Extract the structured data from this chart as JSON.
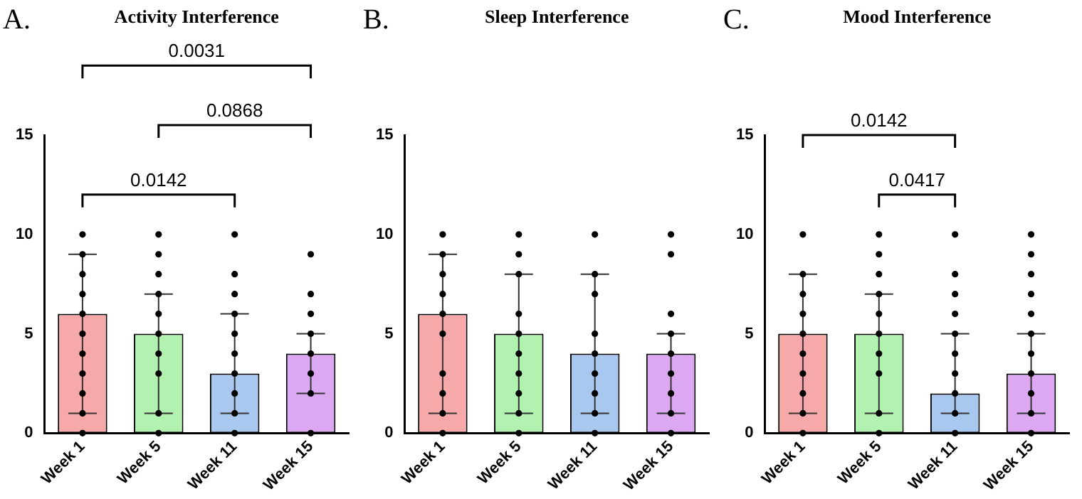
{
  "chart_data": [
    {
      "type": "bar",
      "title": "Activity Interference",
      "annotations": [
        "A.",
        "0.0142",
        "0.0868",
        "0.0031"
      ],
      "categories": [
        "Week 1",
        "Week 5",
        "Week 11",
        "Week 15"
      ],
      "ylim": [
        0,
        15
      ],
      "yticks": [
        0,
        5,
        10,
        15
      ],
      "series": [
        {
          "colors": [
            "#f7a8a8",
            "#b2f2b0",
            "#a8c8f0",
            "#dca8f2"
          ],
          "values": [
            6,
            5,
            3,
            4
          ],
          "errors": [
            [
              1,
              9
            ],
            [
              1,
              7
            ],
            [
              1,
              6
            ],
            [
              2,
              5
            ]
          ]
        },
        {
          "type": "scatter",
          "color": "#000000",
          "marker": "circle",
          "x": [
            "Week 1",
            "Week 1",
            "Week 1",
            "Week 1",
            "Week 1",
            "Week 1",
            "Week 1",
            "Week 1",
            "Week 1",
            "Week 1",
            "Week 1",
            "Week 5",
            "Week 5",
            "Week 5",
            "Week 5",
            "Week 5",
            "Week 5",
            "Week 5",
            "Week 5",
            "Week 5",
            "Week 5",
            "Week 11",
            "Week 11",
            "Week 11",
            "Week 11",
            "Week 11",
            "Week 11",
            "Week 11",
            "Week 11",
            "Week 11",
            "Week 11",
            "Week 15",
            "Week 15",
            "Week 15",
            "Week 15",
            "Week 15",
            "Week 15",
            "Week 15",
            "Week 15"
          ],
          "values": [
            10,
            9,
            8,
            7,
            6,
            5,
            4,
            3,
            2,
            1,
            0,
            10,
            9,
            8,
            7,
            6,
            5,
            4,
            3,
            1,
            0,
            10,
            8,
            7,
            6,
            5,
            4,
            3,
            2,
            1,
            0,
            9,
            7,
            6,
            5,
            4,
            3,
            2,
            0
          ]
        }
      ]
    },
    {
      "type": "bar",
      "title": "Sleep Interference",
      "annotations": [
        "B."
      ],
      "categories": [
        "Week 1",
        "Week 5",
        "Week 11",
        "Week 15"
      ],
      "ylim": [
        0,
        15
      ],
      "yticks": [
        0,
        5,
        10,
        15
      ],
      "series": [
        {
          "colors": [
            "#f7a8a8",
            "#b2f2b0",
            "#a8c8f0",
            "#dca8f2"
          ],
          "values": [
            6,
            5,
            4,
            4
          ],
          "errors": [
            [
              1,
              9
            ],
            [
              1,
              8
            ],
            [
              1,
              8
            ],
            [
              1,
              5
            ]
          ]
        },
        {
          "type": "scatter",
          "color": "#000000",
          "marker": "circle",
          "x": [
            "Week 1",
            "Week 1",
            "Week 1",
            "Week 1",
            "Week 1",
            "Week 1",
            "Week 1",
            "Week 1",
            "Week 1",
            "Week 1",
            "Week 5",
            "Week 5",
            "Week 5",
            "Week 5",
            "Week 5",
            "Week 5",
            "Week 5",
            "Week 5",
            "Week 5",
            "Week 5",
            "Week 11",
            "Week 11",
            "Week 11",
            "Week 11",
            "Week 11",
            "Week 11",
            "Week 11",
            "Week 11",
            "Week 11",
            "Week 15",
            "Week 15",
            "Week 15",
            "Week 15",
            "Week 15",
            "Week 15",
            "Week 15",
            "Week 15",
            "Week 15"
          ],
          "values": [
            10,
            9,
            8,
            7,
            6,
            5,
            3,
            2,
            1,
            0,
            10,
            9,
            8,
            6,
            5,
            4,
            3,
            2,
            1,
            0,
            10,
            8,
            7,
            5,
            4,
            3,
            2,
            1,
            0,
            10,
            9,
            6,
            5,
            4,
            3,
            2,
            1,
            0
          ]
        }
      ]
    },
    {
      "type": "bar",
      "title": "Mood Interference",
      "annotations": [
        "C.",
        "0.0417",
        "0.0142"
      ],
      "categories": [
        "Week 1",
        "Week 5",
        "Week 11",
        "Week 15"
      ],
      "ylim": [
        0,
        15
      ],
      "yticks": [
        0,
        5,
        10,
        15
      ],
      "series": [
        {
          "colors": [
            "#f7a8a8",
            "#b2f2b0",
            "#a8c8f0",
            "#dca8f2"
          ],
          "values": [
            5,
            5,
            2,
            3
          ],
          "errors": [
            [
              1,
              8
            ],
            [
              1,
              7
            ],
            [
              1,
              5
            ],
            [
              1,
              5
            ]
          ]
        },
        {
          "type": "scatter",
          "color": "#000000",
          "marker": "circle",
          "x": [
            "Week 1",
            "Week 1",
            "Week 1",
            "Week 1",
            "Week 1",
            "Week 1",
            "Week 1",
            "Week 1",
            "Week 1",
            "Week 1",
            "Week 5",
            "Week 5",
            "Week 5",
            "Week 5",
            "Week 5",
            "Week 5",
            "Week 5",
            "Week 5",
            "Week 5",
            "Week 5",
            "Week 11",
            "Week 11",
            "Week 11",
            "Week 11",
            "Week 11",
            "Week 11",
            "Week 11",
            "Week 11",
            "Week 11",
            "Week 11",
            "Week 15",
            "Week 15",
            "Week 15",
            "Week 15",
            "Week 15",
            "Week 15",
            "Week 15",
            "Week 15",
            "Week 15",
            "Week 15",
            "Week 15"
          ],
          "values": [
            10,
            8,
            7,
            6,
            5,
            4,
            3,
            2,
            1,
            0,
            10,
            9,
            8,
            7,
            6,
            5,
            4,
            3,
            1,
            0,
            10,
            8,
            7,
            6,
            5,
            4,
            3,
            2,
            1,
            0,
            10,
            9,
            8,
            7,
            6,
            5,
            4,
            3,
            2,
            1,
            0
          ]
        }
      ]
    }
  ]
}
